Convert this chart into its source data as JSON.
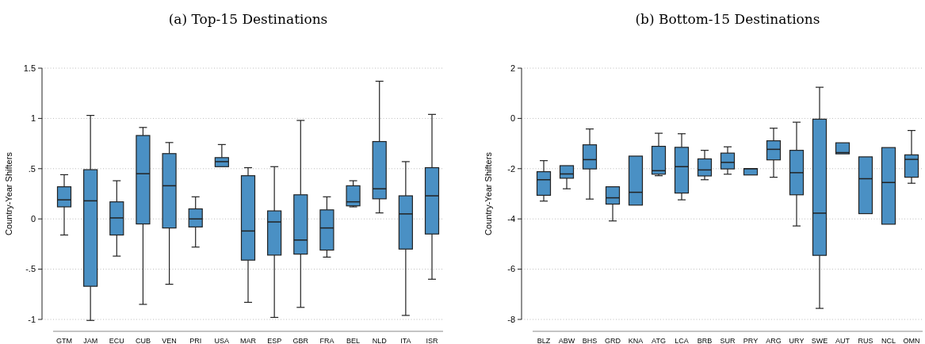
{
  "chart_data": [
    {
      "type": "box",
      "title": "(a) Top-15 Destinations",
      "ylabel": "Country-Year Shifters",
      "color": "#4a90c4",
      "grid": "y",
      "categories": [
        "GTM",
        "JAM",
        "ECU",
        "CUB",
        "VEN",
        "PRI",
        "USA",
        "MAR",
        "ESP",
        "GBR",
        "FRA",
        "BEL",
        "NLD",
        "ITA",
        "ISR"
      ],
      "ylim": [
        -1,
        1.5
      ],
      "yticks": [
        {
          "value": -1,
          "label": "-1"
        },
        {
          "value": -0.5,
          "label": "-.5"
        },
        {
          "value": 0,
          "label": "0"
        },
        {
          "value": 0.5,
          "label": ".5"
        },
        {
          "value": 1,
          "label": "1"
        },
        {
          "value": 1.5,
          "label": "1.5"
        }
      ],
      "boxes": [
        {
          "low": -0.16,
          "q1": 0.12,
          "median": 0.19,
          "q3": 0.32,
          "high": 0.44
        },
        {
          "low": -1.01,
          "q1": -0.67,
          "median": 0.18,
          "q3": 0.49,
          "high": 1.03
        },
        {
          "low": -0.37,
          "q1": -0.16,
          "median": 0.01,
          "q3": 0.17,
          "high": 0.38
        },
        {
          "low": -0.85,
          "q1": -0.05,
          "median": 0.45,
          "q3": 0.83,
          "high": 0.91
        },
        {
          "low": -0.65,
          "q1": -0.09,
          "median": 0.33,
          "q3": 0.65,
          "high": 0.76
        },
        {
          "low": -0.28,
          "q1": -0.08,
          "median": 0.0,
          "q3": 0.1,
          "high": 0.22
        },
        {
          "low": 0.52,
          "q1": 0.52,
          "median": 0.57,
          "q3": 0.61,
          "high": 0.74
        },
        {
          "low": -0.83,
          "q1": -0.41,
          "median": -0.12,
          "q3": 0.43,
          "high": 0.51
        },
        {
          "low": -0.98,
          "q1": -0.36,
          "median": -0.03,
          "q3": 0.08,
          "high": 0.52
        },
        {
          "low": -0.88,
          "q1": -0.35,
          "median": -0.21,
          "q3": 0.24,
          "high": 0.98
        },
        {
          "low": -0.38,
          "q1": -0.31,
          "median": -0.09,
          "q3": 0.09,
          "high": 0.22
        },
        {
          "low": 0.12,
          "q1": 0.13,
          "median": 0.17,
          "q3": 0.33,
          "high": 0.38
        },
        {
          "low": 0.06,
          "q1": 0.2,
          "median": 0.3,
          "q3": 0.77,
          "high": 1.37
        },
        {
          "low": -0.96,
          "q1": -0.3,
          "median": 0.05,
          "q3": 0.23,
          "high": 0.57
        },
        {
          "low": -0.6,
          "q1": -0.15,
          "median": 0.23,
          "q3": 0.51,
          "high": 1.04
        }
      ]
    },
    {
      "type": "box",
      "title": "(b) Bottom-15 Destinations",
      "ylabel": "Country-Year Shifters",
      "color": "#4a90c4",
      "grid": "y",
      "categories": [
        "BLZ",
        "ABW",
        "BHS",
        "GRD",
        "KNA",
        "ATG",
        "LCA",
        "BRB",
        "SUR",
        "PRY",
        "ARG",
        "URY",
        "SWE",
        "AUT",
        "RUS",
        "NCL",
        "OMN"
      ],
      "ylim": [
        -8,
        2
      ],
      "yticks": [
        -8,
        -6,
        -4,
        -2,
        0,
        2
      ],
      "boxes": [
        {
          "low": -3.29,
          "q1": -3.06,
          "median": -2.44,
          "q3": -2.12,
          "high": -1.68
        },
        {
          "low": -2.8,
          "q1": -2.38,
          "median": -2.21,
          "q3": -1.88,
          "high": -1.88
        },
        {
          "low": -3.21,
          "q1": -2.01,
          "median": -1.64,
          "q3": -1.05,
          "high": -0.42
        },
        {
          "low": -4.08,
          "q1": -3.41,
          "median": -3.16,
          "q3": -2.72,
          "high": -2.72
        },
        {
          "low": -3.45,
          "q1": -3.45,
          "median": -2.94,
          "q3": -1.5,
          "high": -1.5
        },
        {
          "low": -2.28,
          "q1": -2.22,
          "median": -2.08,
          "q3": -1.11,
          "high": -0.59
        },
        {
          "low": -3.24,
          "q1": -2.97,
          "median": -1.92,
          "q3": -1.15,
          "high": -0.61
        },
        {
          "low": -2.44,
          "q1": -2.29,
          "median": -2.05,
          "q3": -1.61,
          "high": -1.27
        },
        {
          "low": -2.22,
          "q1": -2.01,
          "median": -1.75,
          "q3": -1.38,
          "high": -1.13
        },
        {
          "low": -2.25,
          "q1": -2.25,
          "median": -2.0,
          "q3": -2.0,
          "high": -2.0
        },
        {
          "low": -2.34,
          "q1": -1.65,
          "median": -1.23,
          "q3": -0.89,
          "high": -0.39
        },
        {
          "low": -4.28,
          "q1": -3.04,
          "median": -2.16,
          "q3": -1.27,
          "high": -0.15
        },
        {
          "low": -7.56,
          "q1": -5.45,
          "median": -3.77,
          "q3": -0.03,
          "high": 1.24
        },
        {
          "low": -1.41,
          "q1": -1.41,
          "median": -1.36,
          "q3": -0.97,
          "high": -0.97
        },
        {
          "low": -3.79,
          "q1": -3.79,
          "median": -2.4,
          "q3": -1.53,
          "high": -1.53
        },
        {
          "low": -4.21,
          "q1": -4.21,
          "median": -2.55,
          "q3": -1.16,
          "high": -1.16
        },
        {
          "low": -2.58,
          "q1": -2.34,
          "median": -1.63,
          "q3": -1.45,
          "high": -0.48
        }
      ]
    }
  ]
}
